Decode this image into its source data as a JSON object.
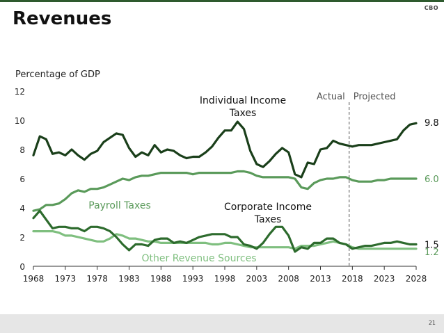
{
  "slide": {
    "title": "Revenues",
    "logo": "CBO",
    "page_number": "21"
  },
  "chart_data": {
    "type": "line",
    "ylabel": "Percentage of GDP",
    "xlim": [
      1968,
      2028
    ],
    "ylim": [
      0,
      12
    ],
    "yticks": [
      0,
      2,
      4,
      6,
      8,
      10,
      12
    ],
    "xticks": [
      1968,
      1973,
      1978,
      1983,
      1988,
      1993,
      1998,
      2003,
      2008,
      2013,
      2018,
      2023,
      2028
    ],
    "divider": {
      "year": 2017.5,
      "left_label": "Actual",
      "right_label": "Projected"
    },
    "series": [
      {
        "name": "Individual Income Taxes",
        "label_lines": [
          "Individual Income",
          "Taxes"
        ],
        "color": "#1a3f1a",
        "end_label": "9.8",
        "end_label_color": "#111111",
        "x": [
          1968,
          1969,
          1970,
          1971,
          1972,
          1973,
          1974,
          1975,
          1976,
          1977,
          1978,
          1979,
          1980,
          1981,
          1982,
          1983,
          1984,
          1985,
          1986,
          1987,
          1988,
          1989,
          1990,
          1991,
          1992,
          1993,
          1994,
          1995,
          1996,
          1997,
          1998,
          1999,
          2000,
          2001,
          2002,
          2003,
          2004,
          2005,
          2006,
          2007,
          2008,
          2009,
          2010,
          2011,
          2012,
          2013,
          2014,
          2015,
          2016,
          2017,
          2018,
          2019,
          2020,
          2021,
          2022,
          2023,
          2024,
          2025,
          2026,
          2027,
          2028
        ],
        "values": [
          7.6,
          8.9,
          8.7,
          7.7,
          7.8,
          7.6,
          8.0,
          7.6,
          7.3,
          7.7,
          7.9,
          8.5,
          8.8,
          9.1,
          9.0,
          8.1,
          7.5,
          7.8,
          7.6,
          8.3,
          7.8,
          8.0,
          7.9,
          7.6,
          7.4,
          7.5,
          7.5,
          7.8,
          8.2,
          8.8,
          9.3,
          9.3,
          9.9,
          9.4,
          7.9,
          7.0,
          6.8,
          7.2,
          7.7,
          8.1,
          7.8,
          6.3,
          6.1,
          7.1,
          7.0,
          8.0,
          8.1,
          8.6,
          8.4,
          8.3,
          8.2,
          8.3,
          8.3,
          8.3,
          8.4,
          8.5,
          8.6,
          8.7,
          9.3,
          9.7,
          9.8
        ]
      },
      {
        "name": "Payroll Taxes",
        "label_lines": [
          "Payroll Taxes"
        ],
        "color": "#5a9a5a",
        "end_label": "6.0",
        "end_label_color": "#5a9a5a",
        "x": [
          1968,
          1969,
          1970,
          1971,
          1972,
          1973,
          1974,
          1975,
          1976,
          1977,
          1978,
          1979,
          1980,
          1981,
          1982,
          1983,
          1984,
          1985,
          1986,
          1987,
          1988,
          1989,
          1990,
          1991,
          1992,
          1993,
          1994,
          1995,
          1996,
          1997,
          1998,
          1999,
          2000,
          2001,
          2002,
          2003,
          2004,
          2005,
          2006,
          2007,
          2008,
          2009,
          2010,
          2011,
          2012,
          2013,
          2014,
          2015,
          2016,
          2017,
          2018,
          2019,
          2020,
          2021,
          2022,
          2023,
          2024,
          2025,
          2026,
          2027,
          2028
        ],
        "values": [
          3.8,
          3.9,
          4.2,
          4.2,
          4.3,
          4.6,
          5.0,
          5.2,
          5.1,
          5.3,
          5.3,
          5.4,
          5.6,
          5.8,
          6.0,
          5.9,
          6.1,
          6.2,
          6.2,
          6.3,
          6.4,
          6.4,
          6.4,
          6.4,
          6.4,
          6.3,
          6.4,
          6.4,
          6.4,
          6.4,
          6.4,
          6.4,
          6.5,
          6.5,
          6.4,
          6.2,
          6.1,
          6.1,
          6.1,
          6.1,
          6.1,
          6.0,
          5.4,
          5.3,
          5.7,
          5.9,
          6.0,
          6.0,
          6.1,
          6.1,
          5.9,
          5.8,
          5.8,
          5.8,
          5.9,
          5.9,
          6.0,
          6.0,
          6.0,
          6.0,
          6.0
        ]
      },
      {
        "name": "Corporate Income Taxes",
        "label_lines": [
          "Corporate Income",
          "Taxes"
        ],
        "color": "#2d6b2d",
        "end_label": "1.5",
        "end_label_color": "#111111",
        "x": [
          1968,
          1969,
          1970,
          1971,
          1972,
          1973,
          1974,
          1975,
          1976,
          1977,
          1978,
          1979,
          1980,
          1981,
          1982,
          1983,
          1984,
          1985,
          1986,
          1987,
          1988,
          1989,
          1990,
          1991,
          1992,
          1993,
          1994,
          1995,
          1996,
          1997,
          1998,
          1999,
          2000,
          2001,
          2002,
          2003,
          2004,
          2005,
          2006,
          2007,
          2008,
          2009,
          2010,
          2011,
          2012,
          2013,
          2014,
          2015,
          2016,
          2017,
          2018,
          2019,
          2020,
          2021,
          2022,
          2023,
          2024,
          2025,
          2026,
          2027,
          2028
        ],
        "values": [
          3.3,
          3.8,
          3.2,
          2.6,
          2.7,
          2.7,
          2.6,
          2.6,
          2.4,
          2.7,
          2.7,
          2.6,
          2.4,
          2.0,
          1.5,
          1.1,
          1.5,
          1.5,
          1.4,
          1.8,
          1.9,
          1.9,
          1.6,
          1.7,
          1.6,
          1.8,
          2.0,
          2.1,
          2.2,
          2.2,
          2.2,
          2.0,
          2.0,
          1.5,
          1.4,
          1.2,
          1.6,
          2.2,
          2.7,
          2.7,
          2.1,
          1.0,
          1.3,
          1.2,
          1.6,
          1.6,
          1.9,
          1.9,
          1.6,
          1.5,
          1.2,
          1.3,
          1.4,
          1.4,
          1.5,
          1.6,
          1.6,
          1.7,
          1.6,
          1.5,
          1.5
        ]
      },
      {
        "name": "Other Revenue Sources",
        "label_lines": [
          "Other Revenue Sources"
        ],
        "color": "#7fbf7f",
        "end_label": "1.2",
        "end_label_color": "#5a9a5a",
        "x": [
          1968,
          1969,
          1970,
          1971,
          1972,
          1973,
          1974,
          1975,
          1976,
          1977,
          1978,
          1979,
          1980,
          1981,
          1982,
          1983,
          1984,
          1985,
          1986,
          1987,
          1988,
          1989,
          1990,
          1991,
          1992,
          1993,
          1994,
          1995,
          1996,
          1997,
          1998,
          1999,
          2000,
          2001,
          2002,
          2003,
          2004,
          2005,
          2006,
          2007,
          2008,
          2009,
          2010,
          2011,
          2012,
          2013,
          2014,
          2015,
          2016,
          2017,
          2018,
          2019,
          2020,
          2021,
          2022,
          2023,
          2024,
          2025,
          2026,
          2027,
          2028
        ],
        "values": [
          2.4,
          2.4,
          2.4,
          2.4,
          2.3,
          2.1,
          2.1,
          2.0,
          1.9,
          1.8,
          1.7,
          1.7,
          1.9,
          2.2,
          2.1,
          1.9,
          1.9,
          1.8,
          1.7,
          1.7,
          1.6,
          1.6,
          1.6,
          1.6,
          1.6,
          1.6,
          1.6,
          1.6,
          1.5,
          1.5,
          1.6,
          1.6,
          1.5,
          1.4,
          1.3,
          1.3,
          1.3,
          1.3,
          1.3,
          1.3,
          1.3,
          1.2,
          1.4,
          1.4,
          1.4,
          1.5,
          1.6,
          1.7,
          1.6,
          1.5,
          1.3,
          1.2,
          1.2,
          1.2,
          1.2,
          1.2,
          1.2,
          1.2,
          1.2,
          1.2,
          1.2
        ]
      }
    ]
  }
}
